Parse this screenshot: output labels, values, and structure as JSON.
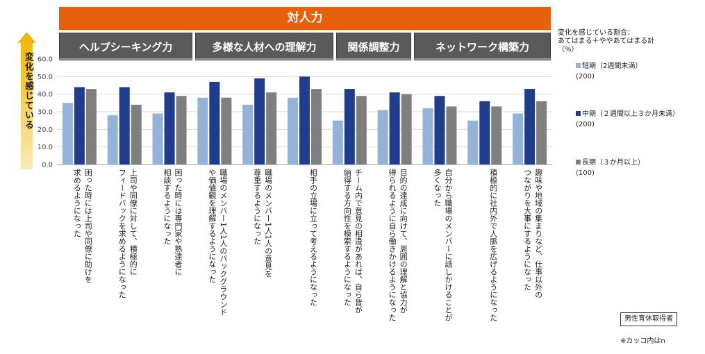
{
  "banner": "対人力",
  "categories": [
    "ヘルプシーキング力",
    "多様な人材への理解力",
    "関係調整力",
    "ネットワーク構築力"
  ],
  "y_axis_label": "変化を感じている",
  "legend": {
    "title": "変化を感じている割合：\nあてはまる＋ややあてはまる計\n（%）",
    "items": [
      {
        "name": "短期（2週間未満）",
        "n": "(200)",
        "color": "#95b3d7"
      },
      {
        "name": "中期（２週間以上３か月未満）",
        "n": "(200)",
        "color": "#1f3d8c"
      },
      {
        "name": "長期（３か月以上）",
        "n": "(100)",
        "color": "#7f7f7f"
      }
    ]
  },
  "respondent": "男性育休取得者",
  "note": "※カッコ内はn",
  "chart_data": {
    "type": "bar",
    "ylim": [
      0,
      60
    ],
    "yticks": [
      "0.0",
      "10.0",
      "20.0",
      "30.0",
      "40.0",
      "50.0",
      "60.0"
    ],
    "grid": true,
    "legend_position": "right",
    "categories": [
      "困った時には上司や同僚に助けを\n求めるようになった",
      "上司や同僚に対して、積極的に\nフィードバックを求めるようになった",
      "困った時には専門家や熟達者に\n相談するようになった",
      "職場のメンバー1人1人のバックグラウンド\nや価値観を理解するようになった",
      "職場のメンバー1人1人の意見を\n尊重するようになった",
      "相手の立場に立って考えるようになった",
      "チーム内で意見の相違があれば、自ら皆が\n納得する方向性を模索するようになった",
      "目的の達成に向けて、周囲の理解と協力が\n得られるように自ら働きかけるようになった",
      "自分から職場のメンバーに話しかけることが\n多くなった",
      "積極的に社内外で人脈を広げるようになった",
      "趣味や地域の集まりなど、仕事以外の\nつながりを大事にするようになった"
    ],
    "series": [
      {
        "name": "短期（2週間未満）",
        "values": [
          35,
          28,
          29,
          38,
          34,
          38,
          25,
          31,
          32,
          25,
          29
        ]
      },
      {
        "name": "中期（２週間以上３か月未満）",
        "values": [
          44,
          44,
          41,
          47,
          49,
          50,
          43,
          41,
          39,
          36,
          43
        ]
      },
      {
        "name": "長期（３か月以上）",
        "values": [
          43,
          34,
          39,
          38,
          41,
          43,
          39,
          40,
          33,
          33,
          36
        ]
      }
    ]
  }
}
